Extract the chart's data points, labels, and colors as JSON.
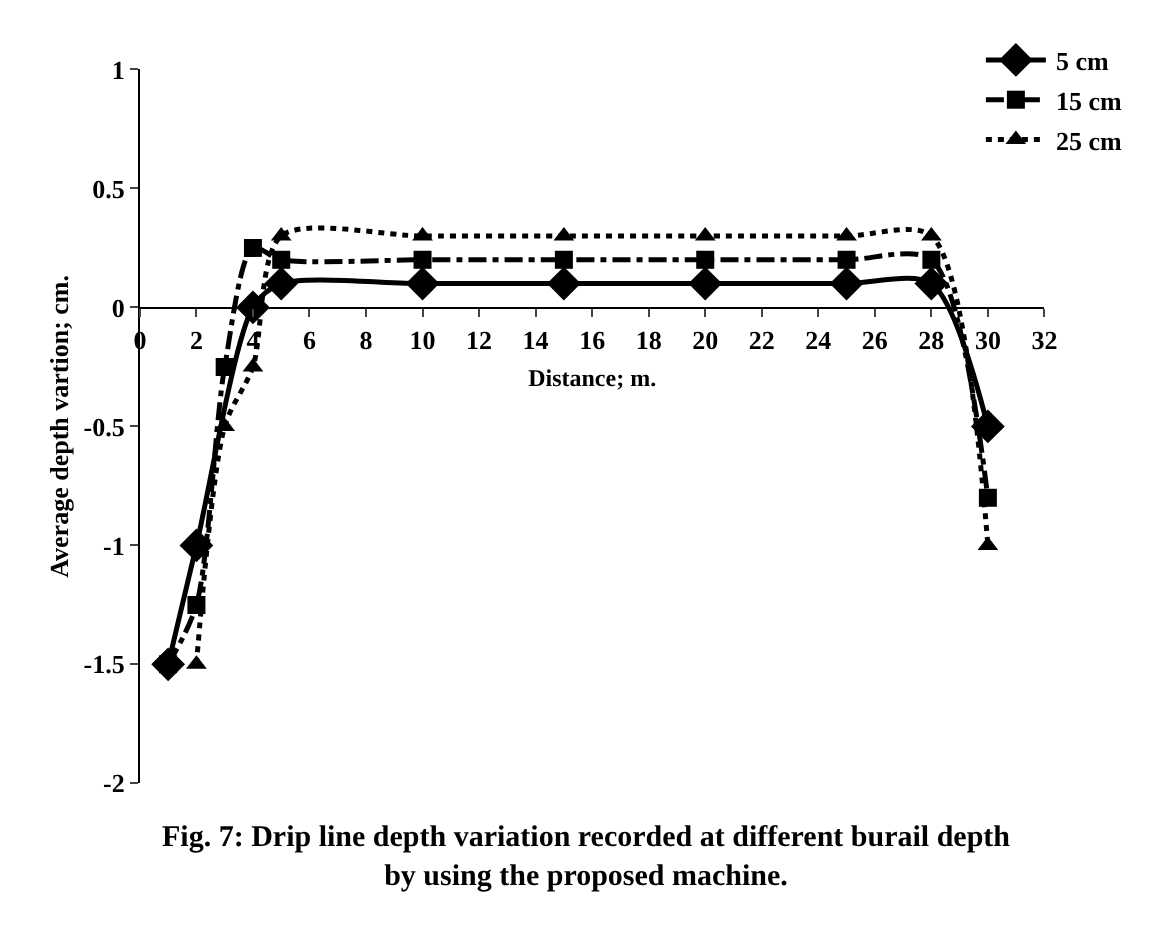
{
  "chart_data": {
    "type": "line",
    "title": "Fig. 7: Drip line depth variation recorded at different burail depth by using the proposed machine.",
    "xlabel": "Distance; m.",
    "ylabel": "Average depth vartion; cm.",
    "xlim": [
      0,
      32
    ],
    "xticks": [
      0,
      2,
      4,
      6,
      8,
      10,
      12,
      14,
      16,
      18,
      20,
      22,
      24,
      26,
      28,
      30,
      32
    ],
    "ylim": [
      -2,
      1
    ],
    "yticks": [
      -2,
      -1.5,
      -1,
      -0.5,
      0,
      0.5,
      1
    ],
    "grid": false,
    "legend": "top right",
    "series": [
      {
        "name": "5 cm",
        "color": "#000000",
        "marker": "diamond",
        "line_style": "solid",
        "x": [
          1,
          2,
          4,
          5,
          10,
          15,
          20,
          25,
          28,
          30
        ],
        "values": [
          -1.5,
          -1,
          0,
          0.1,
          0.1,
          0.1,
          0.1,
          0.1,
          0.1,
          -0.5
        ]
      },
      {
        "name": "15 cm",
        "color": "#000000",
        "marker": "square",
        "line_style": "dashdot",
        "x": [
          1,
          2,
          3,
          4,
          5,
          10,
          15,
          20,
          25,
          28,
          30
        ],
        "values": [
          -1.5,
          -1.25,
          -0.25,
          0.25,
          0.2,
          0.2,
          0.2,
          0.2,
          0.2,
          0.2,
          -0.8
        ]
      },
      {
        "name": "25 cm",
        "color": "#000000",
        "marker": "triangle",
        "line_style": "dotted",
        "x": [
          2,
          3,
          4,
          5,
          10,
          15,
          20,
          25,
          28,
          30
        ],
        "values": [
          -1.5,
          -0.5,
          -0.25,
          0.3,
          0.3,
          0.3,
          0.3,
          0.3,
          0.3,
          -1
        ]
      }
    ]
  }
}
